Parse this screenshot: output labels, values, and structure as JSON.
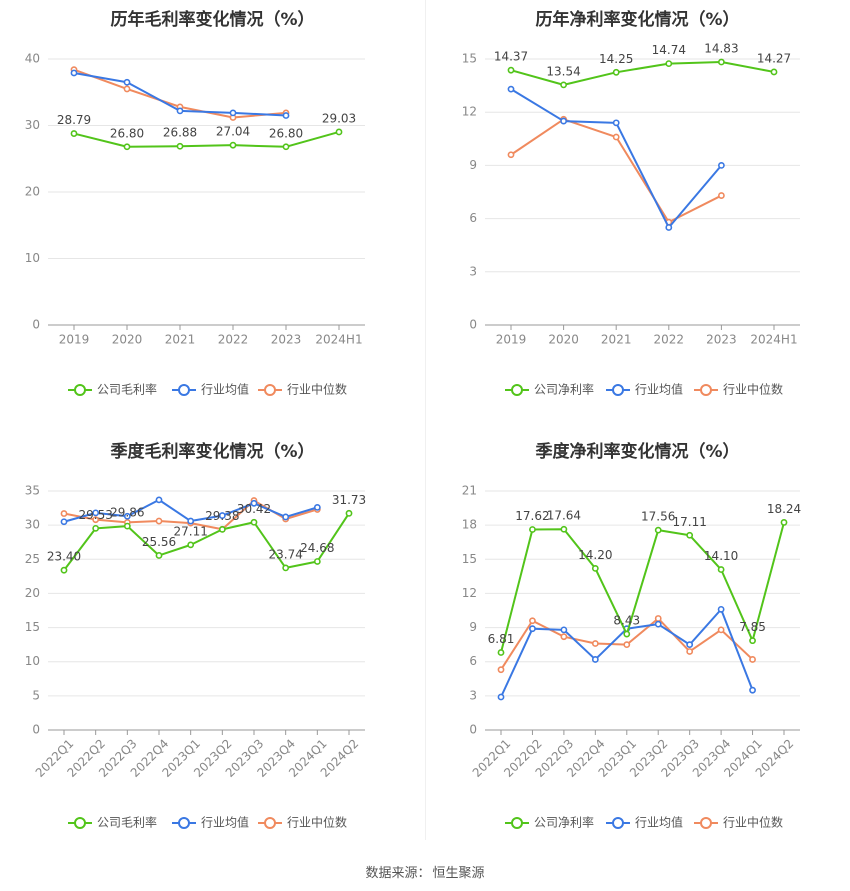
{
  "source": {
    "label": "数据来源：",
    "value": "恒生聚源"
  },
  "colors": {
    "company": "#52c41a",
    "avg": "#3a78e3",
    "median": "#f08a5e",
    "grid": "#e6e6e6",
    "axis": "#888888"
  },
  "chart_data": [
    {
      "type": "line",
      "title": "历年毛利率变化情况（%）",
      "categories": [
        "2019",
        "2020",
        "2021",
        "2022",
        "2023",
        "2024H1"
      ],
      "ylim": [
        0,
        40
      ],
      "yticks": [
        0,
        10,
        20,
        30,
        40
      ],
      "ytick_labels": [
        "0",
        "10",
        "20",
        "30",
        "40"
      ],
      "label_rotated": false,
      "legend": [
        "公司毛利率",
        "行业均值",
        "行业中位数"
      ],
      "series": [
        {
          "name": "公司毛利率",
          "values": [
            28.79,
            26.8,
            26.88,
            27.04,
            26.8,
            29.03
          ],
          "labels": [
            "28.79",
            "26.80",
            "26.88",
            "27.04",
            "26.80",
            "29.03"
          ]
        },
        {
          "name": "行业均值",
          "values": [
            37.9,
            36.5,
            32.2,
            31.9,
            31.5,
            null
          ]
        },
        {
          "name": "行业中位数",
          "values": [
            38.4,
            35.5,
            32.8,
            31.2,
            31.9,
            null
          ]
        }
      ]
    },
    {
      "type": "line",
      "title": "历年净利率变化情况（%）",
      "categories": [
        "2019",
        "2020",
        "2021",
        "2022",
        "2023",
        "2024H1"
      ],
      "ylim": [
        0,
        15
      ],
      "yticks": [
        0,
        3,
        6,
        9,
        12,
        15
      ],
      "ytick_labels": [
        "0",
        "3",
        "6",
        "9",
        "12",
        "15"
      ],
      "label_rotated": false,
      "legend": [
        "公司净利率",
        "行业均值",
        "行业中位数"
      ],
      "series": [
        {
          "name": "公司净利率",
          "values": [
            14.37,
            13.54,
            14.25,
            14.74,
            14.83,
            14.27
          ],
          "labels": [
            "14.37",
            "13.54",
            "14.25",
            "14.74",
            "14.83",
            "14.27"
          ]
        },
        {
          "name": "行业均值",
          "values": [
            13.3,
            11.5,
            11.4,
            5.5,
            9.0,
            null
          ]
        },
        {
          "name": "行业中位数",
          "values": [
            9.6,
            11.6,
            10.6,
            5.8,
            7.3,
            null
          ]
        }
      ]
    },
    {
      "type": "line",
      "title": "季度毛利率变化情况（%）",
      "categories": [
        "2022Q1",
        "2022Q2",
        "2022Q3",
        "2022Q4",
        "2023Q1",
        "2023Q2",
        "2023Q3",
        "2023Q4",
        "2024Q1",
        "2024Q2"
      ],
      "ylim": [
        0,
        35
      ],
      "yticks": [
        0,
        5,
        10,
        15,
        20,
        25,
        30,
        35
      ],
      "ytick_labels": [
        "0",
        "5",
        "10",
        "15",
        "20",
        "25",
        "30",
        "35"
      ],
      "label_rotated": true,
      "legend": [
        "公司毛利率",
        "行业均值",
        "行业中位数"
      ],
      "series": [
        {
          "name": "公司毛利率",
          "values": [
            23.4,
            29.53,
            29.86,
            25.56,
            27.11,
            29.38,
            30.42,
            23.74,
            24.68,
            31.73
          ],
          "labels": [
            "23.40",
            "29.53",
            "29.86",
            "25.56",
            "27.11",
            "29.38",
            "30.42",
            "23.74",
            "24.68",
            "31.73"
          ]
        },
        {
          "name": "行业均值",
          "values": [
            30.5,
            31.8,
            31.3,
            33.7,
            30.6,
            31.4,
            33.2,
            31.2,
            32.6,
            null
          ]
        },
        {
          "name": "行业中位数",
          "values": [
            31.7,
            30.8,
            30.4,
            30.6,
            30.3,
            29.4,
            33.6,
            30.9,
            32.3,
            null
          ]
        }
      ]
    },
    {
      "type": "line",
      "title": "季度净利率变化情况（%）",
      "categories": [
        "2022Q1",
        "2022Q2",
        "2022Q3",
        "2022Q4",
        "2023Q1",
        "2023Q2",
        "2023Q3",
        "2023Q4",
        "2024Q1",
        "2024Q2"
      ],
      "ylim": [
        0,
        21
      ],
      "yticks": [
        0,
        3,
        6,
        9,
        12,
        15,
        18,
        21
      ],
      "ytick_labels": [
        "0",
        "3",
        "6",
        "9",
        "12",
        "15",
        "18",
        "21"
      ],
      "label_rotated": true,
      "legend": [
        "公司净利率",
        "行业均值",
        "行业中位数"
      ],
      "series": [
        {
          "name": "公司净利率",
          "values": [
            6.81,
            17.62,
            17.64,
            14.2,
            8.43,
            17.56,
            17.11,
            14.1,
            7.85,
            18.24
          ],
          "labels": [
            "6.81",
            "17.62",
            "17.64",
            "14.20",
            "8.43",
            "17.56",
            "17.11",
            "14.10",
            "7.85",
            "18.24"
          ]
        },
        {
          "name": "行业均值",
          "values": [
            2.9,
            8.9,
            8.8,
            6.2,
            8.9,
            9.3,
            7.5,
            10.6,
            3.5,
            null
          ]
        },
        {
          "name": "行业中位数",
          "values": [
            5.3,
            9.6,
            8.2,
            7.6,
            7.5,
            9.8,
            6.9,
            8.8,
            6.2,
            null
          ]
        }
      ]
    }
  ]
}
